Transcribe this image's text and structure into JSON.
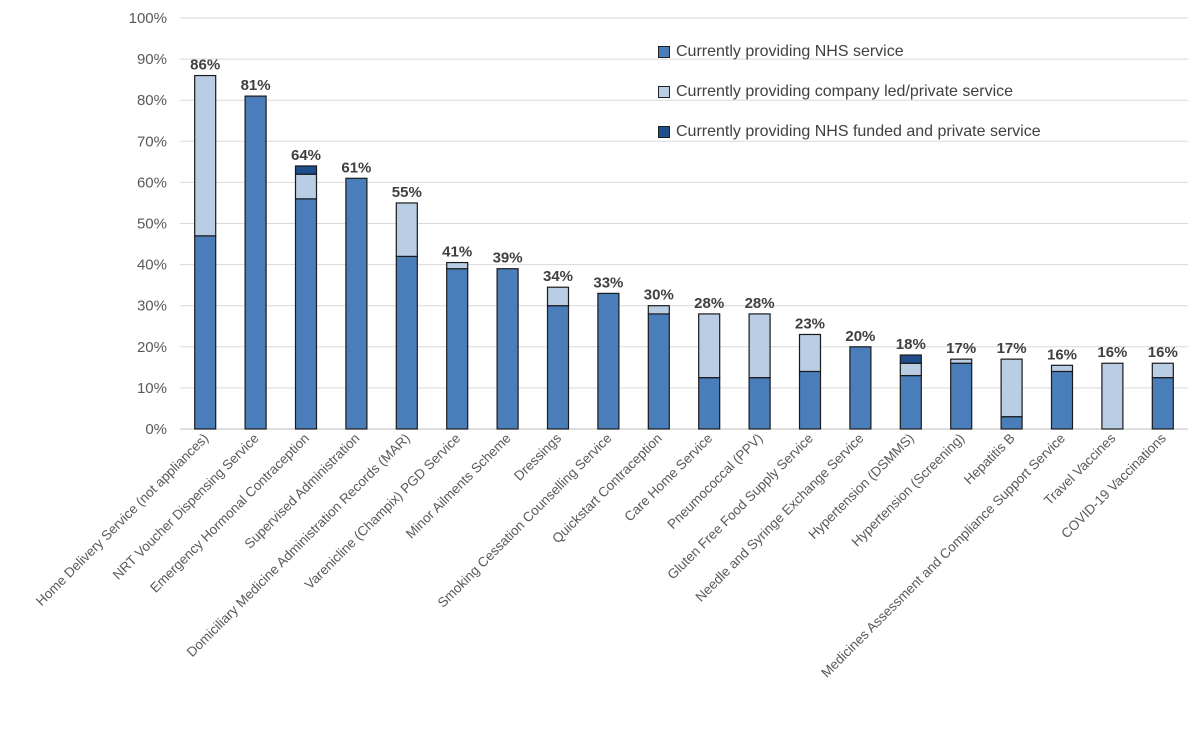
{
  "chart_data": {
    "type": "bar",
    "stacked": true,
    "grid": true,
    "legend_position": "top-right",
    "ylim": [
      0,
      100
    ],
    "yticks": [
      "0%",
      "10%",
      "20%",
      "30%",
      "40%",
      "50%",
      "60%",
      "70%",
      "80%",
      "90%",
      "100%"
    ],
    "categories": [
      "Home Delivery Service (not appliances)",
      "NRT Voucher Dispensing Service",
      "Emergency Hormonal Contraception",
      "Supervised Administration",
      "Domiciliary Medicine Administration Records (MAR)",
      "Varenicline (Champix) PGD Service",
      "Minor Ailments Scheme",
      "Dressings",
      "Smoking Cessation Counselling Service",
      "Quickstart Contraception",
      "Care Home Service",
      "Pneumococcal (PPV)",
      "Gluten Free Food Supply Service",
      "Needle and Syringe Exchange Service",
      "Hypertension (DSMMS)",
      "Hypertension (Screening)",
      "Hepatitis B",
      "Medicines Assessment and Compliance Support Service",
      "Travel Vaccines",
      "COVID-19 Vaccinations"
    ],
    "series": [
      {
        "name": "Currently providing NHS service",
        "color": "#4a7ebb",
        "values": [
          47,
          81,
          56,
          61,
          42,
          39,
          39,
          30,
          33,
          28,
          12.5,
          12.5,
          14,
          20,
          13,
          16,
          3,
          14,
          0,
          12.5
        ]
      },
      {
        "name": "Currently providing company led/private service",
        "color": "#b9cde5",
        "values": [
          39,
          0,
          6,
          0,
          13,
          1.5,
          0,
          4.5,
          0,
          2,
          15.5,
          15.5,
          9,
          0,
          3,
          1,
          14,
          1.5,
          16,
          3.5
        ]
      },
      {
        "name": "Currently providing NHS funded and private service",
        "color": "#1f4e8c",
        "values": [
          0,
          0,
          2,
          0,
          0,
          0,
          0,
          0,
          0,
          0,
          0,
          0,
          0,
          0,
          2,
          0,
          0,
          0,
          0,
          0
        ]
      }
    ],
    "totals": [
      "86%",
      "81%",
      "64%",
      "61%",
      "55%",
      "41%",
      "39%",
      "34%",
      "33%",
      "30%",
      "28%",
      "28%",
      "23%",
      "20%",
      "18%",
      "17%",
      "17%",
      "16%",
      "16%",
      "16%"
    ]
  }
}
